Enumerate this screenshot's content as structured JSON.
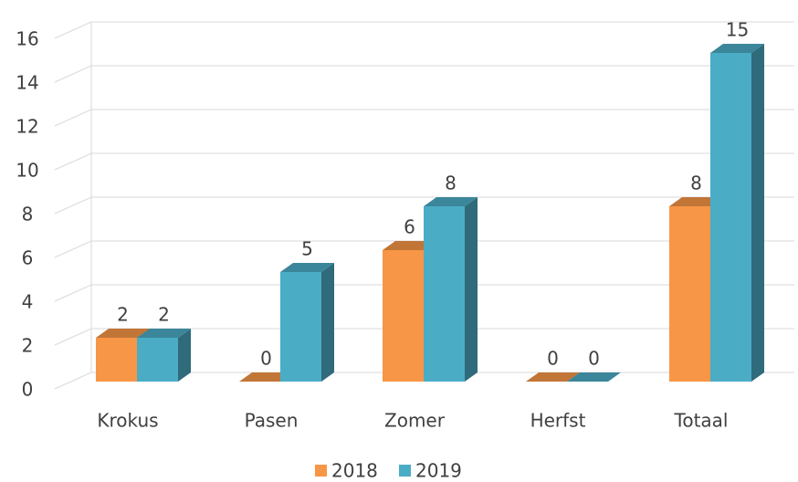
{
  "chart_data": {
    "type": "bar3d",
    "categories": [
      "Krokus",
      "Pasen",
      "Zomer",
      "Herfst",
      "Totaal"
    ],
    "series": [
      {
        "name": "2018",
        "color": "#f79646",
        "values": [
          2,
          0,
          6,
          0,
          8
        ]
      },
      {
        "name": "2019",
        "color": "#4bacc6",
        "values": [
          2,
          5,
          8,
          0,
          15
        ]
      }
    ],
    "ylim": [
      0,
      16
    ],
    "yticks": [
      0,
      2,
      4,
      6,
      8,
      10,
      12,
      14,
      16
    ],
    "grid": true,
    "legend": "bottom"
  }
}
